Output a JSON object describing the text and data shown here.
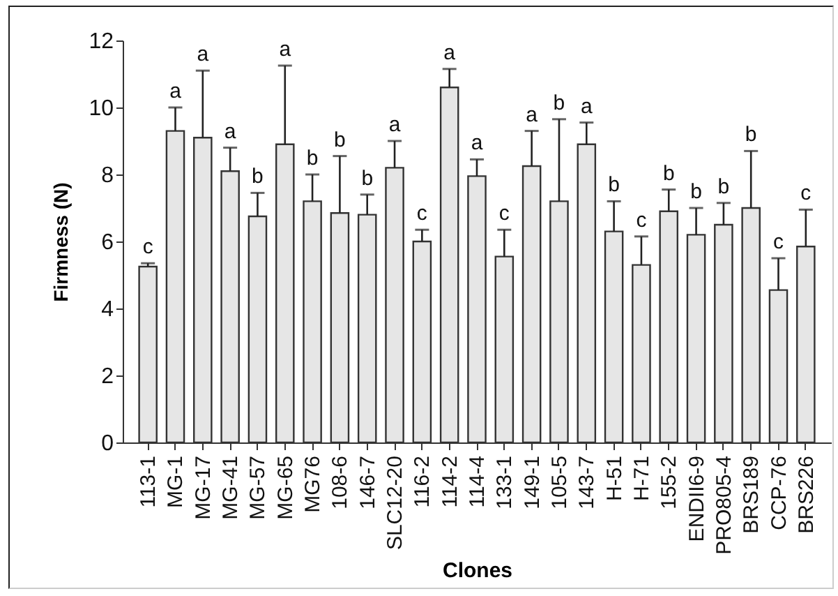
{
  "chart_data": {
    "type": "bar",
    "xlabel": "Clones",
    "ylabel": "Firmness (N)",
    "categories": [
      "113-1",
      "MG-1",
      "MG-17",
      "MG-41",
      "MG-57",
      "MG-65",
      "MG76",
      "108-6",
      "146-7",
      "SLC12-20",
      "116-2",
      "114-2",
      "114-4",
      "133-1",
      "149-1",
      "105-5",
      "143-7",
      "H-51",
      "H-71",
      "155-2",
      "ENDII6-9",
      "PRO805-4",
      "BRS189",
      "CCP-76",
      "BRS226"
    ],
    "values": [
      5.25,
      9.3,
      9.1,
      8.1,
      6.75,
      8.9,
      7.2,
      6.85,
      6.8,
      8.2,
      6.0,
      10.6,
      7.95,
      5.55,
      8.25,
      7.2,
      8.9,
      6.3,
      5.3,
      6.9,
      6.2,
      6.5,
      7.0,
      4.55,
      5.85
    ],
    "errors": [
      [
        5.25,
        5.35
      ],
      [
        9.3,
        10.0
      ],
      [
        9.1,
        11.1
      ],
      [
        8.1,
        8.8
      ],
      [
        6.75,
        7.45
      ],
      [
        8.9,
        11.25
      ],
      [
        7.2,
        8.0
      ],
      [
        6.85,
        8.55
      ],
      [
        6.8,
        7.4
      ],
      [
        8.2,
        9.0
      ],
      [
        6.0,
        6.35
      ],
      [
        10.6,
        11.15
      ],
      [
        7.95,
        8.45
      ],
      [
        5.55,
        6.35
      ],
      [
        8.25,
        9.3
      ],
      [
        7.2,
        9.65
      ],
      [
        8.9,
        9.55
      ],
      [
        6.3,
        7.2
      ],
      [
        5.3,
        6.15
      ],
      [
        6.9,
        7.55
      ],
      [
        6.2,
        7.0
      ],
      [
        6.5,
        7.15
      ],
      [
        7.0,
        8.7
      ],
      [
        4.55,
        5.5
      ],
      [
        5.85,
        6.95
      ]
    ],
    "color": "#e6e6e6",
    "ylim": [
      0,
      12
    ],
    "yticks": [
      0,
      2,
      4,
      6,
      8,
      10,
      12
    ],
    "annotations": [
      {
        "text": "c",
        "x": "113-1",
        "y": 5.35
      },
      {
        "text": "a",
        "x": "MG-1",
        "y": 10.0
      },
      {
        "text": "a",
        "x": "MG-17",
        "y": 11.1
      },
      {
        "text": "a",
        "x": "MG-41",
        "y": 8.8
      },
      {
        "text": "b",
        "x": "MG-57",
        "y": 7.45
      },
      {
        "text": "a",
        "x": "MG-65",
        "y": 11.25
      },
      {
        "text": "b",
        "x": "MG76",
        "y": 8.0
      },
      {
        "text": "b",
        "x": "108-6",
        "y": 8.55
      },
      {
        "text": "b",
        "x": "146-7",
        "y": 7.4
      },
      {
        "text": "a",
        "x": "SLC12-20",
        "y": 9.0
      },
      {
        "text": "c",
        "x": "116-2",
        "y": 6.35
      },
      {
        "text": "a",
        "x": "114-2",
        "y": 11.15
      },
      {
        "text": "a",
        "x": "114-4",
        "y": 8.45
      },
      {
        "text": "c",
        "x": "133-1",
        "y": 6.35
      },
      {
        "text": "a",
        "x": "149-1",
        "y": 9.3
      },
      {
        "text": "b",
        "x": "105-5",
        "y": 9.65
      },
      {
        "text": "a",
        "x": "143-7",
        "y": 9.55
      },
      {
        "text": "b",
        "x": "H-51",
        "y": 7.2
      },
      {
        "text": "c",
        "x": "H-71",
        "y": 6.15
      },
      {
        "text": "b",
        "x": "155-2",
        "y": 7.55
      },
      {
        "text": "b",
        "x": "ENDII6-9",
        "y": 7.0
      },
      {
        "text": "b",
        "x": "PRO805-4",
        "y": 7.15
      },
      {
        "text": "b",
        "x": "BRS189",
        "y": 8.7
      },
      {
        "text": "c",
        "x": "CCP-76",
        "y": 5.5
      },
      {
        "text": "c",
        "x": "BRS226",
        "y": 6.95
      }
    ]
  }
}
